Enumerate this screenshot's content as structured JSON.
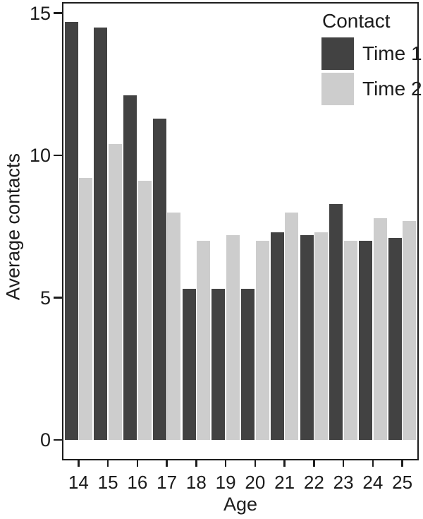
{
  "figure": {
    "background": "#ffffff",
    "axis_color": "#1d1d1d",
    "text_color": "#1c1c1c"
  },
  "chart_data": {
    "type": "bar",
    "title": "",
    "categories": [
      "14",
      "15",
      "16",
      "17",
      "18",
      "19",
      "20",
      "21",
      "22",
      "23",
      "24",
      "25"
    ],
    "series": [
      {
        "name": "Time 1",
        "color": "#424242",
        "values": [
          14.7,
          14.5,
          12.1,
          11.3,
          5.3,
          5.3,
          5.3,
          7.3,
          7.2,
          8.3,
          7.0,
          7.1
        ]
      },
      {
        "name": "Time 2",
        "color": "#cdcdcd",
        "values": [
          9.2,
          10.4,
          9.1,
          8.0,
          7.0,
          7.2,
          7.0,
          8.0,
          7.3,
          7.0,
          7.8,
          7.7
        ]
      }
    ],
    "xlabel": "Age",
    "ylabel": "Average contacts",
    "ylim": [
      0,
      15
    ],
    "yticks": [
      {
        "value": 0,
        "label": "0"
      },
      {
        "value": 5,
        "label": "5"
      },
      {
        "value": 10,
        "label": "10"
      },
      {
        "value": 15,
        "label": "15"
      }
    ],
    "legend_title": "Contact",
    "legend_position": "top-right",
    "grid": false
  }
}
